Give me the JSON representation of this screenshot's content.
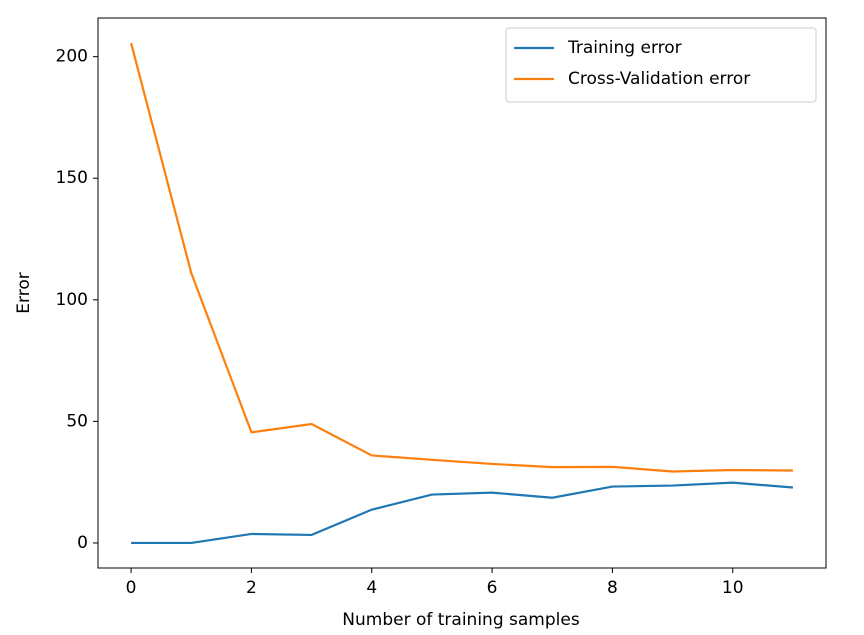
{
  "chart_data": {
    "type": "line",
    "x_label": "Number of training samples",
    "y_label": "Error",
    "x": [
      0,
      1,
      2,
      3,
      4,
      5,
      6,
      7,
      8,
      9,
      10,
      11
    ],
    "series": [
      {
        "name": "Training error",
        "color": "#1f77b4",
        "values": [
          0,
          0,
          3.7,
          3.3,
          13.7,
          19.9,
          20.7,
          18.6,
          23.2,
          23.6,
          24.8,
          22.8
        ]
      },
      {
        "name": "Cross-Validation error",
        "color": "#ff7f0e",
        "values": [
          205.6,
          111,
          45.5,
          48.9,
          36,
          34.2,
          32.5,
          31.2,
          31.3,
          29.4,
          30,
          29.8
        ]
      }
    ],
    "xlim": [
      -0.55,
      11.55
    ],
    "ylim": [
      -10.3,
      215.9
    ],
    "xticks": [
      0,
      2,
      4,
      6,
      8,
      10
    ],
    "yticks": [
      0,
      50,
      100,
      150,
      200
    ],
    "legend": "upper right"
  }
}
